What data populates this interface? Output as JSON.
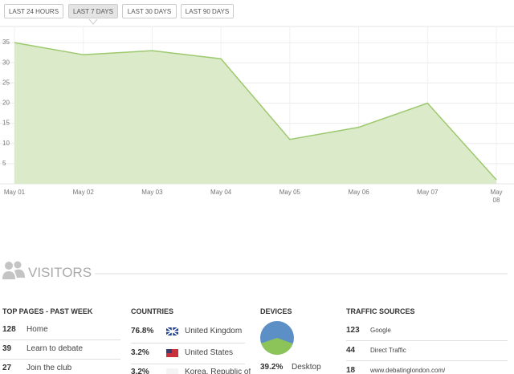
{
  "range_buttons": [
    "LAST 24 HOURS",
    "LAST 7 DAYS",
    "LAST 30 DAYS",
    "LAST 90 DAYS"
  ],
  "chart_data": {
    "type": "area",
    "categories": [
      "May 01",
      "May 02",
      "May 03",
      "May 04",
      "May 05",
      "May 06",
      "May 07",
      "May 08"
    ],
    "values": [
      35,
      32,
      33,
      31,
      11,
      14,
      20,
      1
    ],
    "color": "#dbeac8",
    "line_color": "#9cc96e",
    "ylim": [
      0,
      39
    ],
    "yticks": [
      5,
      10,
      15,
      20,
      25,
      30,
      35
    ],
    "grid": true
  },
  "visitors": {
    "title": "VISITORS",
    "top_pages": {
      "title": "TOP PAGES - PAST WEEK",
      "rows": [
        [
          "128",
          "Home"
        ],
        [
          "39",
          "Learn to debate"
        ],
        [
          "27",
          "Join the club"
        ]
      ]
    },
    "countries": {
      "title": "COUNTRIES",
      "rows": [
        [
          "76.8%",
          "United Kingdom"
        ],
        [
          "3.2%",
          "United States"
        ],
        [
          "3.2%",
          "Korea, Republic of"
        ]
      ]
    },
    "devices": {
      "title": "DEVICES",
      "type": "pie",
      "base_color": "#5b8fc5",
      "slices": [
        {
          "name": "Desktop",
          "value": 39.2,
          "value_label": "39.2%",
          "color": "#8dc45a"
        }
      ]
    },
    "traffic_sources": {
      "title": "TRAFFIC SOURCES",
      "rows": [
        [
          "123",
          "Google"
        ],
        [
          "44",
          "Direct Traffic"
        ],
        [
          "18",
          "www.debatinglondon.com/"
        ]
      ]
    }
  }
}
